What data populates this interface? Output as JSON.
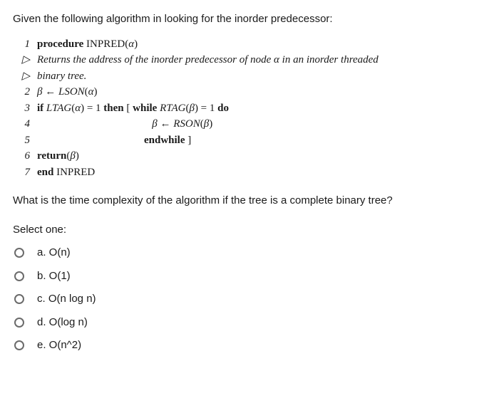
{
  "intro": "Given the following algorithm in looking for the inorder predecessor:",
  "algorithm": {
    "triangle": "▷",
    "line1_num": "1",
    "line1_kw": "procedure",
    "line1_name": "INPRED(",
    "line1_arg": "α",
    "line1_close": ")",
    "comment1": "Returns the address of the inorder predecessor of node α in an inorder threaded",
    "comment2": "binary tree.",
    "line2_num": "2",
    "line2_var": "β",
    "line2_arrow": " ← ",
    "line2_func": "LSON",
    "line2_open": "(",
    "line2_arg": "α",
    "line2_close": ")",
    "line3_num": "3",
    "line3_if": "if",
    "line3_ltag": " LTAG",
    "line3_open1": "(",
    "line3_alpha": "α",
    "line3_close1": ") = 1 ",
    "line3_then": "then",
    "line3_bracketspace": " [ ",
    "line3_while": "while",
    "line3_rtag": " RTAG",
    "line3_open2": "(",
    "line3_beta": "β",
    "line3_close2": ") = 1 ",
    "line3_do": "do",
    "line4_num": "4",
    "line4_pad": "                                           ",
    "line4_beta": "β",
    "line4_arrow": " ← ",
    "line4_rson": "RSON",
    "line4_open": "(",
    "line4_arg": "β",
    "line4_close": ")",
    "line5_num": "5",
    "line5_pad": "                                        ",
    "line5_endwhile": "endwhile",
    "line5_bracket": " ]",
    "line6_num": "6",
    "line6_return": "return",
    "line6_arg_open": "(",
    "line6_beta": "β",
    "line6_arg_close": ")",
    "line7_num": "7",
    "line7_end": "end",
    "line7_name": " INPRED"
  },
  "question": "What is the time complexity of the algorithm if the tree is a complete binary tree?",
  "select_label": "Select one:",
  "options": [
    {
      "label": "a. O(n)"
    },
    {
      "label": "b. O(1)"
    },
    {
      "label": "c. O(n log n)"
    },
    {
      "label": "d. O(log n)"
    },
    {
      "label": "e. O(n^2)"
    }
  ]
}
